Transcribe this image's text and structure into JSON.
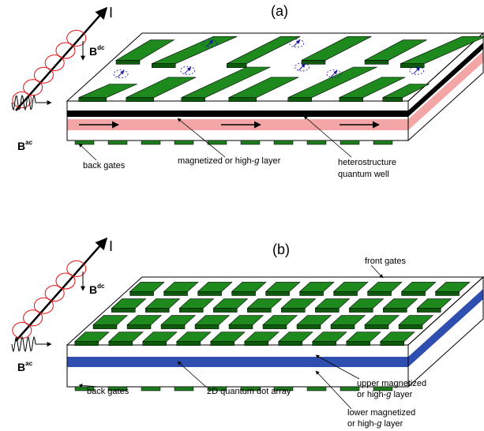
{
  "panels": [
    {
      "label": "(a)",
      "current": "I",
      "b_dc": {
        "symbol": "B",
        "sup": "dc"
      },
      "b_ac": {
        "symbol": "B",
        "sup": "ac"
      },
      "back_gates": "back gates",
      "layer": [
        "magnetized or high-",
        "g",
        " layer"
      ],
      "well": [
        "heterostructure",
        "quantum well"
      ]
    },
    {
      "label": "(b)",
      "current": "I",
      "b_dc": {
        "symbol": "B",
        "sup": "dc"
      },
      "b_ac": {
        "symbol": "B",
        "sup": "ac"
      },
      "front_gates": "front gates",
      "back_gates": "back gates",
      "array": "2D quantum dot array",
      "upper": [
        "upper magnetized",
        "or high-",
        "g",
        " layer"
      ],
      "lower": [
        "lower magnetized",
        "or high-",
        "g",
        " layer"
      ]
    }
  ]
}
